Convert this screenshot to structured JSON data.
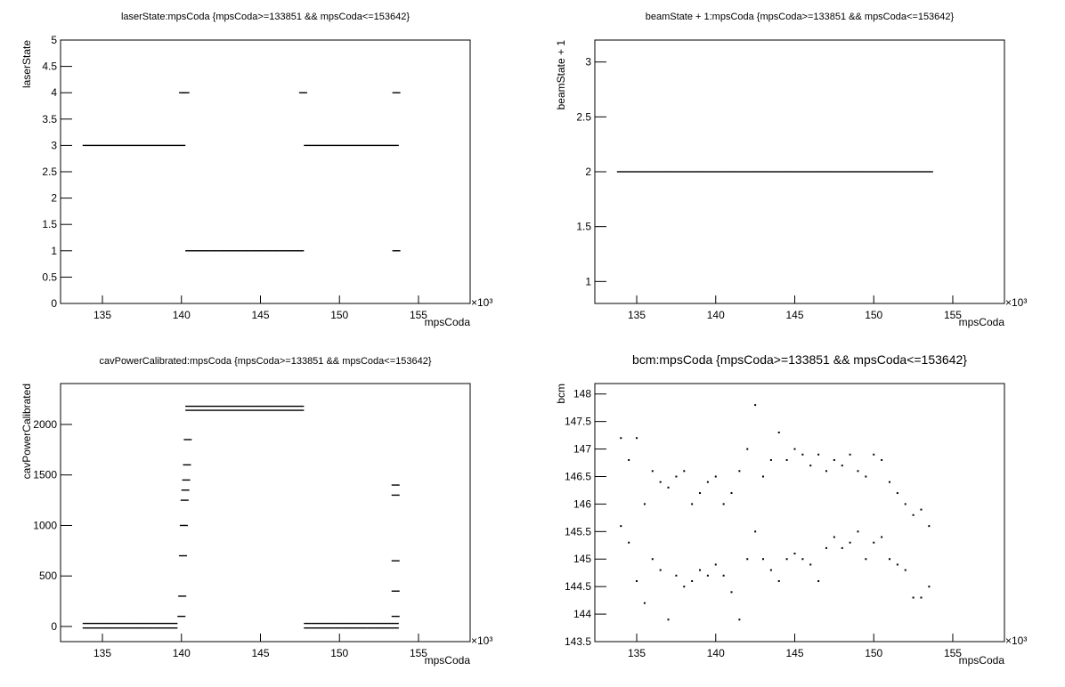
{
  "chart_data": [
    {
      "type": "scatter",
      "title": "laserState:mpsCoda {mpsCoda>=133851 && mpsCoda<=153642}",
      "x_label": "mpsCoda",
      "y_label": "laserState",
      "x_multiplier": "×10³",
      "color": "#000000",
      "x": [
        134,
        134.5,
        135,
        135.5,
        136,
        136.5,
        137,
        137.5,
        138,
        138.5,
        139,
        139.5,
        140,
        140.1,
        140.25,
        140.5,
        141,
        141.5,
        142,
        142.5,
        143,
        143.5,
        144,
        144.5,
        145,
        145.5,
        146,
        146.5,
        147,
        147.5,
        147.7,
        148,
        148.5,
        149,
        149.5,
        150,
        150.5,
        151,
        151.5,
        152,
        152.5,
        153,
        153.5,
        153.6,
        153.6
      ],
      "y": [
        3,
        3,
        3,
        3,
        3,
        3,
        3,
        3,
        3,
        3,
        3,
        3,
        3,
        4,
        4,
        1,
        1,
        1,
        1,
        1,
        1,
        1,
        1,
        1,
        1,
        1,
        1,
        1,
        1,
        1,
        4,
        3,
        3,
        3,
        3,
        3,
        3,
        3,
        3,
        3,
        3,
        3,
        3,
        4,
        1
      ],
      "xlim": [
        132.35,
        158.27
      ],
      "xticks": [
        135,
        140,
        145,
        150,
        155
      ],
      "ylim": [
        0,
        5
      ],
      "yticks": [
        0,
        0.5,
        1,
        1.5,
        2,
        2.5,
        3,
        3.5,
        4,
        4.5,
        5
      ]
    },
    {
      "type": "scatter",
      "title": "beamState + 1:mpsCoda {mpsCoda>=133851 && mpsCoda<=153642}",
      "x_label": "mpsCoda",
      "y_label": "beamState + 1",
      "x_multiplier": "×10³",
      "color": "#000000",
      "x": [
        134,
        134.5,
        135,
        135.5,
        136,
        136.5,
        137,
        137.5,
        138,
        138.5,
        139,
        139.5,
        140,
        140.5,
        141,
        141.5,
        142,
        142.5,
        143,
        143.5,
        144,
        144.5,
        145,
        145.5,
        146,
        146.5,
        147,
        147.5,
        148,
        148.5,
        149,
        149.5,
        150,
        150.5,
        151,
        151.5,
        152,
        152.5,
        153,
        153.5
      ],
      "y": [
        2,
        2,
        2,
        2,
        2,
        2,
        2,
        2,
        2,
        2,
        2,
        2,
        2,
        2,
        2,
        2,
        2,
        2,
        2,
        2,
        2,
        2,
        2,
        2,
        2,
        2,
        2,
        2,
        2,
        2,
        2,
        2,
        2,
        2,
        2,
        2,
        2,
        2,
        2,
        2
      ],
      "xlim": [
        132.35,
        158.27
      ],
      "xticks": [
        135,
        140,
        145,
        150,
        155
      ],
      "ylim": [
        0.8,
        3.2
      ],
      "yticks": [
        1,
        1.5,
        2,
        2.5,
        3
      ]
    },
    {
      "type": "scatter",
      "title": "cavPowerCalibrated:mpsCoda {mpsCoda>=133851 && mpsCoda<=153642}",
      "x_label": "mpsCoda",
      "y_label": "cavPowerCalibrated",
      "x_multiplier": "×10³",
      "color": "#000000",
      "x": [
        134,
        134.5,
        135,
        135.5,
        136,
        136.5,
        137,
        137.5,
        138,
        138.5,
        139,
        139.5,
        134,
        134.5,
        135,
        135.5,
        136,
        136.5,
        137,
        137.5,
        138,
        138.5,
        139,
        139.5,
        140,
        140.05,
        140.1,
        140.15,
        140.2,
        140.25,
        140.3,
        140.35,
        140.4,
        140.5,
        141,
        141.5,
        142,
        142.5,
        143,
        143.5,
        144,
        144.5,
        145,
        145.5,
        146,
        146.5,
        147,
        147.5,
        140.5,
        141,
        141.5,
        142,
        142.5,
        143,
        143.5,
        144,
        144.5,
        145,
        145.5,
        146,
        146.5,
        147,
        147.5,
        148,
        148.5,
        149,
        149.5,
        150,
        150.5,
        151,
        151.5,
        152,
        152.5,
        153,
        153.5,
        148,
        148.5,
        149,
        149.5,
        150,
        150.5,
        151,
        151.5,
        152,
        152.5,
        153,
        153.5,
        153.55,
        153.55,
        153.55,
        153.55,
        153.55
      ],
      "y": [
        30,
        30,
        30,
        30,
        30,
        30,
        30,
        30,
        30,
        30,
        30,
        30,
        -15,
        -15,
        -15,
        -15,
        -15,
        -15,
        -15,
        -15,
        -15,
        -15,
        -15,
        -15,
        100,
        300,
        700,
        1000,
        1250,
        1350,
        1450,
        1600,
        1850,
        2180,
        2180,
        2180,
        2180,
        2180,
        2180,
        2180,
        2180,
        2180,
        2180,
        2180,
        2180,
        2180,
        2180,
        2180,
        2140,
        2140,
        2140,
        2140,
        2140,
        2140,
        2140,
        2140,
        2140,
        2140,
        2140,
        2140,
        2140,
        2140,
        2140,
        30,
        30,
        30,
        30,
        30,
        30,
        30,
        30,
        30,
        30,
        30,
        30,
        -15,
        -15,
        -15,
        -15,
        -15,
        -15,
        -15,
        -15,
        -15,
        -15,
        -15,
        -15,
        1400,
        1300,
        650,
        350,
        100
      ],
      "xlim": [
        132.35,
        158.27
      ],
      "xticks": [
        135,
        140,
        145,
        150,
        155
      ],
      "ylim": [
        -150,
        2405
      ],
      "yticks": [
        0,
        500,
        1000,
        1500,
        2000
      ]
    },
    {
      "type": "scatter",
      "title": "bcm:mpsCoda {mpsCoda>=133851 && mpsCoda<=153642}",
      "x_label": "mpsCoda",
      "y_label": "bcm",
      "x_multiplier": "×10³",
      "color": "#000000",
      "x": [
        134,
        134.5,
        135,
        135.5,
        136,
        136.5,
        137,
        137.5,
        138,
        138.5,
        139,
        139.5,
        140,
        140.5,
        141,
        141.5,
        142,
        142.5,
        143,
        143.5,
        144,
        144.5,
        145,
        145.5,
        146,
        146.5,
        147,
        147.5,
        148,
        148.5,
        149,
        149.5,
        150,
        150.5,
        151,
        151.5,
        152,
        152.5,
        153,
        153.5,
        134,
        134.5,
        135,
        135.5,
        136,
        136.5,
        137,
        137.5,
        138,
        138.5,
        139,
        139.5,
        140,
        140.5,
        141,
        141.5,
        142,
        142.5,
        143,
        143.5,
        144,
        144.5,
        145,
        145.5,
        146,
        146.5,
        147,
        147.5,
        148,
        148.5,
        149,
        149.5,
        150,
        150.5,
        151,
        151.5,
        152,
        152.5,
        153,
        153.5
      ],
      "y": [
        147.2,
        146.8,
        147.2,
        146.0,
        146.6,
        146.4,
        146.3,
        146.5,
        146.6,
        146.0,
        146.2,
        146.4,
        146.5,
        146.0,
        146.2,
        146.6,
        147.0,
        147.8,
        146.5,
        146.8,
        147.3,
        146.8,
        147.0,
        146.9,
        146.7,
        146.9,
        146.6,
        146.8,
        146.7,
        146.9,
        146.6,
        146.5,
        146.9,
        146.8,
        146.4,
        146.2,
        146.0,
        145.8,
        145.9,
        145.6,
        145.6,
        145.3,
        144.6,
        144.2,
        145.0,
        144.8,
        143.9,
        144.7,
        144.5,
        144.6,
        144.8,
        144.7,
        144.9,
        144.7,
        144.4,
        143.9,
        145.0,
        145.5,
        145.0,
        144.8,
        144.6,
        145.0,
        145.1,
        145.0,
        144.9,
        144.6,
        145.2,
        145.4,
        145.2,
        145.3,
        145.5,
        145.0,
        145.3,
        145.4,
        145.0,
        144.9,
        144.8,
        144.3,
        144.3,
        144.5
      ],
      "xlim": [
        132.35,
        158.27
      ],
      "xticks": [
        135,
        140,
        145,
        150,
        155
      ],
      "ylim": [
        143.5,
        148.19
      ],
      "yticks": [
        143.5,
        144,
        144.5,
        145,
        145.5,
        146,
        146.5,
        147,
        147.5,
        148
      ]
    }
  ]
}
